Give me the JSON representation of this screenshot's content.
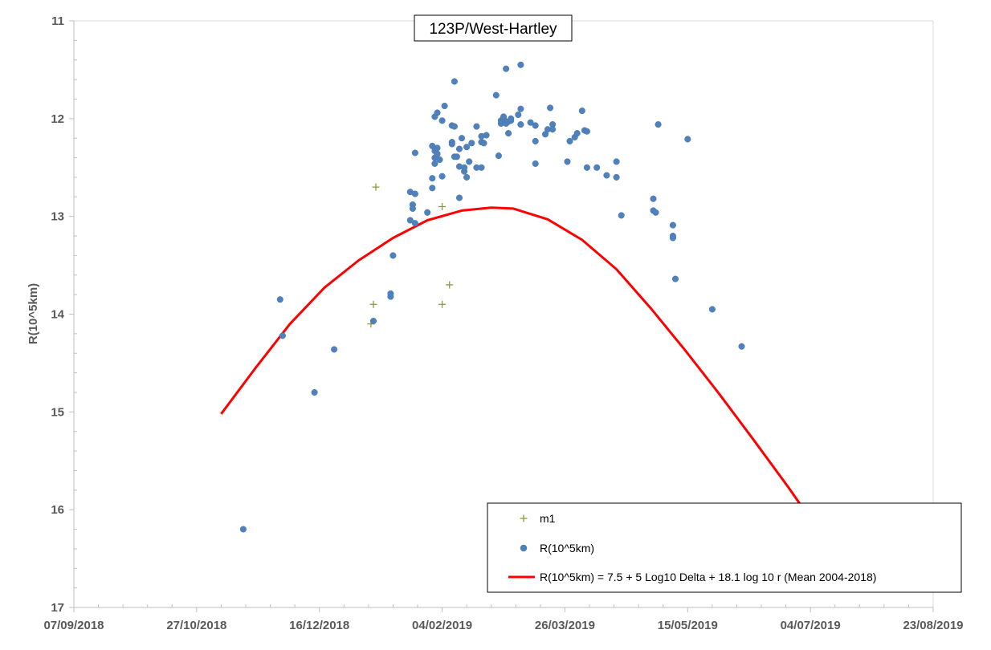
{
  "chart_data": {
    "type": "scatter",
    "title": "123P/West-Hartley",
    "ylabel": "R(10^5km)",
    "xlabel": "",
    "ylim": [
      11,
      17
    ],
    "y_inverted": true,
    "y_ticks": [
      11,
      12,
      13,
      14,
      15,
      16,
      17
    ],
    "x_ticks": [
      "07/09/2018",
      "27/10/2018",
      "16/12/2018",
      "04/02/2019",
      "26/03/2019",
      "15/05/2019",
      "04/07/2019",
      "23/08/2019"
    ],
    "xlim": [
      "2018-09-07",
      "2019-08-23"
    ],
    "grid": false,
    "legend_position": "bottom-right",
    "colors": {
      "m1": "#8c9a3c",
      "R": "#4f81bd",
      "fit": "#ff0000"
    },
    "series": [
      {
        "name": "m1",
        "kind": "scatter",
        "marker": "plus",
        "points": [
          [
            "2019-01-08",
            12.7
          ],
          [
            "2019-01-07",
            13.9
          ],
          [
            "2019-01-06",
            14.1
          ],
          [
            "2019-02-04",
            12.9
          ],
          [
            "2019-02-04",
            13.9
          ],
          [
            "2019-02-07",
            13.7
          ]
        ]
      },
      {
        "name": "R(10^5km)",
        "kind": "scatter",
        "marker": "circle",
        "points": [
          [
            "2018-11-15",
            16.2
          ],
          [
            "2018-11-30",
            13.85
          ],
          [
            "2018-12-01",
            14.22
          ],
          [
            "2018-12-14",
            14.8
          ],
          [
            "2018-12-22",
            14.36
          ],
          [
            "2019-01-07",
            14.07
          ],
          [
            "2019-01-14",
            13.82
          ],
          [
            "2019-01-14",
            13.79
          ],
          [
            "2019-01-15",
            13.4
          ],
          [
            "2019-01-22",
            12.75
          ],
          [
            "2019-01-22",
            13.04
          ],
          [
            "2019-01-23",
            12.88
          ],
          [
            "2019-01-23",
            12.92
          ],
          [
            "2019-01-24",
            12.35
          ],
          [
            "2019-01-24",
            12.77
          ],
          [
            "2019-01-24",
            13.07
          ],
          [
            "2019-01-29",
            12.96
          ],
          [
            "2019-01-31",
            12.28
          ],
          [
            "2019-01-31",
            12.71
          ],
          [
            "2019-01-31",
            12.61
          ],
          [
            "2019-02-01",
            11.98
          ],
          [
            "2019-02-01",
            12.46
          ],
          [
            "2019-02-01",
            12.4
          ],
          [
            "2019-02-01",
            12.33
          ],
          [
            "2019-02-02",
            12.3
          ],
          [
            "2019-02-02",
            12.36
          ],
          [
            "2019-02-02",
            11.94
          ],
          [
            "2019-02-02",
            12.36
          ],
          [
            "2019-02-03",
            12.42
          ],
          [
            "2019-02-04",
            12.59
          ],
          [
            "2019-02-04",
            12.02
          ],
          [
            "2019-02-05",
            11.87
          ],
          [
            "2019-02-08",
            12.24
          ],
          [
            "2019-02-08",
            12.26
          ],
          [
            "2019-02-08",
            12.07
          ],
          [
            "2019-02-09",
            12.08
          ],
          [
            "2019-02-09",
            11.62
          ],
          [
            "2019-02-09",
            12.39
          ],
          [
            "2019-02-10",
            12.39
          ],
          [
            "2019-02-11",
            12.31
          ],
          [
            "2019-02-11",
            12.49
          ],
          [
            "2019-02-11",
            12.81
          ],
          [
            "2019-02-12",
            12.2
          ],
          [
            "2019-02-13",
            12.54
          ],
          [
            "2019-02-13",
            12.5
          ],
          [
            "2019-02-14",
            12.6
          ],
          [
            "2019-02-14",
            12.29
          ],
          [
            "2019-02-15",
            12.44
          ],
          [
            "2019-02-16",
            12.25
          ],
          [
            "2019-02-18",
            12.08
          ],
          [
            "2019-02-18",
            12.5
          ],
          [
            "2019-02-20",
            12.18
          ],
          [
            "2019-02-20",
            12.24
          ],
          [
            "2019-02-20",
            12.5
          ],
          [
            "2019-02-21",
            12.25
          ],
          [
            "2019-02-22",
            12.17
          ],
          [
            "2019-02-26",
            11.76
          ],
          [
            "2019-02-27",
            12.38
          ],
          [
            "2019-02-28",
            12.05
          ],
          [
            "2019-02-28",
            12.02
          ],
          [
            "2019-03-01",
            12.0
          ],
          [
            "2019-03-01",
            11.98
          ],
          [
            "2019-03-02",
            11.49
          ],
          [
            "2019-03-02",
            12.05
          ],
          [
            "2019-03-03",
            12.03
          ],
          [
            "2019-03-03",
            12.15
          ],
          [
            "2019-03-04",
            12.02
          ],
          [
            "2019-03-04",
            12.0
          ],
          [
            "2019-03-07",
            11.96
          ],
          [
            "2019-03-08",
            11.45
          ],
          [
            "2019-03-08",
            12.06
          ],
          [
            "2019-03-08",
            11.9
          ],
          [
            "2019-03-12",
            12.04
          ],
          [
            "2019-03-14",
            12.07
          ],
          [
            "2019-03-14",
            12.23
          ],
          [
            "2019-03-14",
            12.46
          ],
          [
            "2019-03-18",
            12.16
          ],
          [
            "2019-03-19",
            12.11
          ],
          [
            "2019-03-20",
            11.89
          ],
          [
            "2019-03-21",
            12.06
          ],
          [
            "2019-03-21",
            12.11
          ],
          [
            "2019-03-27",
            12.44
          ],
          [
            "2019-03-28",
            12.23
          ],
          [
            "2019-03-30",
            12.19
          ],
          [
            "2019-03-31",
            12.15
          ],
          [
            "2019-04-02",
            11.92
          ],
          [
            "2019-04-03",
            12.12
          ],
          [
            "2019-04-04",
            12.5
          ],
          [
            "2019-04-04",
            12.13
          ],
          [
            "2019-04-08",
            12.5
          ],
          [
            "2019-04-12",
            12.58
          ],
          [
            "2019-04-16",
            12.6
          ],
          [
            "2019-04-16",
            12.44
          ],
          [
            "2019-04-18",
            12.99
          ],
          [
            "2019-05-01",
            12.82
          ],
          [
            "2019-05-01",
            12.94
          ],
          [
            "2019-05-02",
            12.96
          ],
          [
            "2019-05-03",
            12.06
          ],
          [
            "2019-05-09",
            13.09
          ],
          [
            "2019-05-09",
            13.2
          ],
          [
            "2019-05-09",
            13.22
          ],
          [
            "2019-05-10",
            13.64
          ],
          [
            "2019-05-15",
            12.21
          ],
          [
            "2019-05-25",
            13.95
          ],
          [
            "2019-06-06",
            14.33
          ]
        ]
      },
      {
        "name": "R(10^5km) = 7.5 + 5 Log10 Delta + 18.1 log 10 r (Mean 2004-2018)",
        "kind": "line",
        "points": [
          [
            "2018-11-06",
            15.02
          ],
          [
            "2018-11-20",
            14.55
          ],
          [
            "2018-12-04",
            14.1
          ],
          [
            "2018-12-18",
            13.73
          ],
          [
            "2019-01-01",
            13.45
          ],
          [
            "2019-01-15",
            13.22
          ],
          [
            "2019-01-29",
            13.04
          ],
          [
            "2019-02-12",
            12.94
          ],
          [
            "2019-02-24",
            12.91
          ],
          [
            "2019-03-05",
            12.92
          ],
          [
            "2019-03-19",
            13.03
          ],
          [
            "2019-04-02",
            13.24
          ],
          [
            "2019-04-16",
            13.54
          ],
          [
            "2019-04-30",
            13.94
          ],
          [
            "2019-05-14",
            14.37
          ],
          [
            "2019-05-28",
            14.82
          ],
          [
            "2019-06-11",
            15.29
          ],
          [
            "2019-06-25",
            15.77
          ],
          [
            "2019-06-30",
            15.95
          ]
        ]
      }
    ]
  }
}
